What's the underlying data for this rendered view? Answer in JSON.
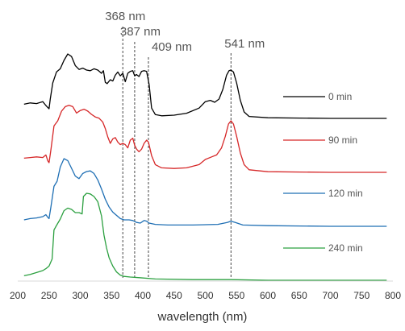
{
  "chart_data": {
    "type": "line",
    "xlabel": "wavelength (nm)",
    "ylabel": "",
    "xlim": [
      200,
      800
    ],
    "x_ticks": [
      200,
      250,
      300,
      350,
      400,
      450,
      500,
      550,
      600,
      650,
      700,
      750,
      800
    ],
    "grid": false,
    "legend_position": "right",
    "peak_markers": [
      {
        "label": "368 nm",
        "x": 368
      },
      {
        "label": "387 nm",
        "x": 387
      },
      {
        "label": "409 nm",
        "x": 409
      },
      {
        "label": "541 nm",
        "x": 541
      }
    ],
    "series": [
      {
        "name": "0 min",
        "color": "#000000",
        "offset": 3,
        "points": [
          [
            210,
            0.22
          ],
          [
            220,
            0.24
          ],
          [
            230,
            0.23
          ],
          [
            240,
            0.26
          ],
          [
            245,
            0.2
          ],
          [
            248,
            0.17
          ],
          [
            250,
            0.15
          ],
          [
            252,
            0.3
          ],
          [
            256,
            0.55
          ],
          [
            262,
            0.72
          ],
          [
            268,
            0.77
          ],
          [
            274,
            0.9
          ],
          [
            280,
            1.0
          ],
          [
            286,
            0.96
          ],
          [
            292,
            0.82
          ],
          [
            298,
            0.76
          ],
          [
            304,
            0.78
          ],
          [
            310,
            0.75
          ],
          [
            316,
            0.74
          ],
          [
            322,
            0.77
          ],
          [
            328,
            0.75
          ],
          [
            334,
            0.7
          ],
          [
            337,
            0.74
          ],
          [
            340,
            0.56
          ],
          [
            343,
            0.54
          ],
          [
            348,
            0.6
          ],
          [
            352,
            0.58
          ],
          [
            356,
            0.67
          ],
          [
            360,
            0.72
          ],
          [
            364,
            0.66
          ],
          [
            368,
            0.7
          ],
          [
            372,
            0.57
          ],
          [
            376,
            0.7
          ],
          [
            380,
            0.73
          ],
          [
            384,
            0.74
          ],
          [
            387,
            0.66
          ],
          [
            390,
            0.68
          ],
          [
            394,
            0.65
          ],
          [
            398,
            0.73
          ],
          [
            402,
            0.74
          ],
          [
            406,
            0.73
          ],
          [
            410,
            0.53
          ],
          [
            414,
            0.16
          ],
          [
            420,
            0.06
          ],
          [
            430,
            0.04
          ],
          [
            450,
            0.05
          ],
          [
            470,
            0.08
          ],
          [
            490,
            0.16
          ],
          [
            500,
            0.26
          ],
          [
            508,
            0.28
          ],
          [
            515,
            0.25
          ],
          [
            522,
            0.3
          ],
          [
            528,
            0.45
          ],
          [
            534,
            0.67
          ],
          [
            538,
            0.74
          ],
          [
            541,
            0.75
          ],
          [
            545,
            0.72
          ],
          [
            550,
            0.55
          ],
          [
            556,
            0.28
          ],
          [
            562,
            0.1
          ],
          [
            570,
            0.03
          ],
          [
            600,
            0.01
          ],
          [
            700,
            0.0
          ],
          [
            790,
            0.0
          ]
        ]
      },
      {
        "name": "90 min",
        "color": "#d62728",
        "offset": 2,
        "points": [
          [
            210,
            0.22
          ],
          [
            220,
            0.23
          ],
          [
            230,
            0.24
          ],
          [
            240,
            0.23
          ],
          [
            245,
            0.27
          ],
          [
            248,
            0.18
          ],
          [
            250,
            0.15
          ],
          [
            253,
            0.35
          ],
          [
            258,
            0.72
          ],
          [
            264,
            0.8
          ],
          [
            270,
            0.95
          ],
          [
            276,
            1.02
          ],
          [
            282,
            1.04
          ],
          [
            288,
            1.02
          ],
          [
            294,
            0.92
          ],
          [
            300,
            0.96
          ],
          [
            306,
            0.98
          ],
          [
            312,
            0.95
          ],
          [
            318,
            0.9
          ],
          [
            324,
            0.86
          ],
          [
            330,
            0.84
          ],
          [
            336,
            0.78
          ],
          [
            340,
            0.68
          ],
          [
            344,
            0.55
          ],
          [
            348,
            0.45
          ],
          [
            352,
            0.52
          ],
          [
            356,
            0.54
          ],
          [
            360,
            0.47
          ],
          [
            364,
            0.43
          ],
          [
            368,
            0.45
          ],
          [
            372,
            0.43
          ],
          [
            376,
            0.38
          ],
          [
            380,
            0.5
          ],
          [
            384,
            0.53
          ],
          [
            387,
            0.42
          ],
          [
            390,
            0.36
          ],
          [
            394,
            0.32
          ],
          [
            398,
            0.36
          ],
          [
            402,
            0.45
          ],
          [
            406,
            0.5
          ],
          [
            409,
            0.47
          ],
          [
            414,
            0.26
          ],
          [
            420,
            0.12
          ],
          [
            430,
            0.07
          ],
          [
            450,
            0.06
          ],
          [
            470,
            0.07
          ],
          [
            490,
            0.12
          ],
          [
            500,
            0.2
          ],
          [
            510,
            0.24
          ],
          [
            518,
            0.27
          ],
          [
            526,
            0.38
          ],
          [
            532,
            0.56
          ],
          [
            537,
            0.75
          ],
          [
            541,
            0.8
          ],
          [
            545,
            0.75
          ],
          [
            550,
            0.56
          ],
          [
            556,
            0.3
          ],
          [
            562,
            0.12
          ],
          [
            570,
            0.04
          ],
          [
            600,
            0.01
          ],
          [
            700,
            0.0
          ],
          [
            790,
            0.0
          ]
        ]
      },
      {
        "name": "120 min",
        "color": "#1f6fb4",
        "offset": 1,
        "points": [
          [
            210,
            0.1
          ],
          [
            220,
            0.12
          ],
          [
            230,
            0.13
          ],
          [
            240,
            0.15
          ],
          [
            245,
            0.18
          ],
          [
            248,
            0.14
          ],
          [
            250,
            0.12
          ],
          [
            253,
            0.3
          ],
          [
            258,
            0.62
          ],
          [
            263,
            0.7
          ],
          [
            268,
            0.92
          ],
          [
            274,
            1.05
          ],
          [
            280,
            1.02
          ],
          [
            286,
            0.9
          ],
          [
            292,
            0.78
          ],
          [
            298,
            0.74
          ],
          [
            304,
            0.82
          ],
          [
            310,
            0.85
          ],
          [
            316,
            0.86
          ],
          [
            322,
            0.82
          ],
          [
            328,
            0.72
          ],
          [
            334,
            0.58
          ],
          [
            340,
            0.42
          ],
          [
            346,
            0.3
          ],
          [
            352,
            0.22
          ],
          [
            358,
            0.17
          ],
          [
            364,
            0.12
          ],
          [
            370,
            0.1
          ],
          [
            378,
            0.1
          ],
          [
            384,
            0.09
          ],
          [
            390,
            0.06
          ],
          [
            396,
            0.05
          ],
          [
            402,
            0.09
          ],
          [
            406,
            0.08
          ],
          [
            410,
            0.05
          ],
          [
            420,
            0.03
          ],
          [
            440,
            0.02
          ],
          [
            480,
            0.02
          ],
          [
            520,
            0.03
          ],
          [
            535,
            0.06
          ],
          [
            541,
            0.08
          ],
          [
            548,
            0.06
          ],
          [
            560,
            0.02
          ],
          [
            600,
            0.01
          ],
          [
            700,
            0.0
          ],
          [
            790,
            0.0
          ]
        ]
      },
      {
        "name": "240 min",
        "color": "#2ca040",
        "offset": 0,
        "points": [
          [
            210,
            0.07
          ],
          [
            220,
            0.09
          ],
          [
            230,
            0.12
          ],
          [
            240,
            0.15
          ],
          [
            245,
            0.18
          ],
          [
            250,
            0.22
          ],
          [
            255,
            0.33
          ],
          [
            258,
            0.78
          ],
          [
            262,
            0.85
          ],
          [
            268,
            0.95
          ],
          [
            274,
            1.08
          ],
          [
            280,
            1.12
          ],
          [
            286,
            1.1
          ],
          [
            292,
            1.05
          ],
          [
            298,
            1.05
          ],
          [
            303,
            1.03
          ],
          [
            305,
            1.3
          ],
          [
            310,
            1.35
          ],
          [
            316,
            1.34
          ],
          [
            322,
            1.3
          ],
          [
            328,
            1.22
          ],
          [
            334,
            1.0
          ],
          [
            338,
            0.7
          ],
          [
            342,
            0.5
          ],
          [
            346,
            0.35
          ],
          [
            352,
            0.22
          ],
          [
            358,
            0.13
          ],
          [
            364,
            0.08
          ],
          [
            370,
            0.06
          ],
          [
            380,
            0.05
          ],
          [
            395,
            0.04
          ],
          [
            420,
            0.02
          ],
          [
            480,
            0.01
          ],
          [
            541,
            0.01
          ],
          [
            600,
            0.0
          ],
          [
            700,
            0.0
          ],
          [
            790,
            0.0
          ]
        ]
      }
    ]
  }
}
